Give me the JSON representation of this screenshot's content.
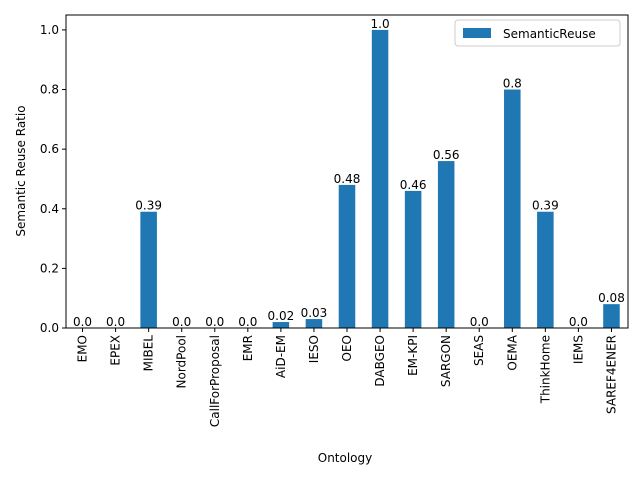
{
  "chart_data": {
    "type": "bar",
    "categories": [
      "EMO",
      "EPEX",
      "MIBEL",
      "NordPool",
      "CallForProposal",
      "EMR",
      "AiD-EM",
      "IESO",
      "OEO",
      "DABGEO",
      "EM-KPI",
      "SARGON",
      "SEAS",
      "OEMA",
      "ThinkHome",
      "IEMS",
      "SAREF4ENER"
    ],
    "series": [
      {
        "name": "SemanticReuse",
        "values": [
          0.0,
          0.0,
          0.39,
          0.0,
          0.0,
          0.0,
          0.02,
          0.03,
          0.48,
          1.0,
          0.46,
          0.56,
          0.0,
          0.8,
          0.39,
          0.0,
          0.08
        ],
        "labels": [
          "0.0",
          "0.0",
          "0.39",
          "0.0",
          "0.0",
          "0.0",
          "0.02",
          "0.03",
          "0.48",
          "1.0",
          "0.46",
          "0.56",
          "0.0",
          "0.8",
          "0.39",
          "0.0",
          "0.08"
        ]
      }
    ],
    "xlabel": "Ontology",
    "ylabel": "Semantic Reuse Ratio",
    "ylim": [
      0,
      1.05
    ],
    "yticks": [
      0.0,
      0.2,
      0.4,
      0.6,
      0.8,
      1.0
    ],
    "ytick_labels": [
      "0.0",
      "0.2",
      "0.4",
      "0.6",
      "0.8",
      "1.0"
    ],
    "legend_position": "top-right",
    "grid": false,
    "bar_color": "#1f77b4"
  }
}
